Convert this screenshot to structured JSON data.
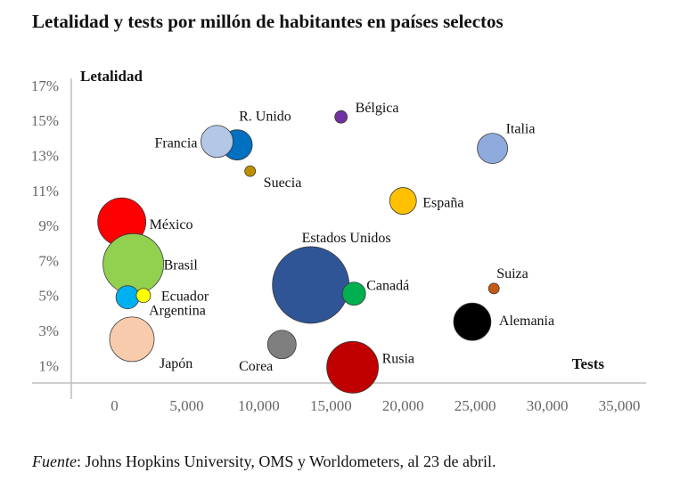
{
  "title": "Letalidad y tests por millón de habitantes en países selectos",
  "source": {
    "label": "Fuente",
    "text": ": Johns Hopkins University, OMS y Worldometers, al 23 de abril."
  },
  "chart_data": {
    "type": "scatter",
    "title": "Letalidad y tests por millón de habitantes en países selectos",
    "xlabel": "Tests",
    "ylabel": "Letalidad",
    "xlim": [
      -3000,
      35000
    ],
    "ylim": [
      0,
      17.5
    ],
    "x_ticks": [
      0,
      5000,
      10000,
      15000,
      20000,
      25000,
      30000,
      35000
    ],
    "x_tick_labels": [
      "0",
      "5,000",
      "10,000",
      "15,000",
      "20,000",
      "25,000",
      "30,000",
      "35,000"
    ],
    "y_ticks": [
      1,
      3,
      5,
      7,
      9,
      11,
      13,
      15,
      17
    ],
    "y_tick_labels": [
      "1%",
      "3%",
      "5%",
      "7%",
      "9%",
      "11%",
      "13%",
      "15%",
      "17%"
    ],
    "grid": false,
    "points": [
      {
        "name": "Bélgica",
        "x": 15700,
        "y": 15.2,
        "r": 7,
        "color": "#7030a0"
      },
      {
        "name": "R. Unido",
        "x": 8500,
        "y": 13.6,
        "r": 17,
        "color": "#0070c0"
      },
      {
        "name": "Francia",
        "x": 7100,
        "y": 13.8,
        "r": 18,
        "color": "#b4c7e7"
      },
      {
        "name": "Italia",
        "x": 26200,
        "y": 13.4,
        "r": 17,
        "color": "#8faadc"
      },
      {
        "name": "Suecia",
        "x": 9400,
        "y": 12.1,
        "r": 6,
        "color": "#bf8f00"
      },
      {
        "name": "España",
        "x": 20000,
        "y": 10.4,
        "r": 15,
        "color": "#ffc000"
      },
      {
        "name": "México",
        "x": 500,
        "y": 9.2,
        "r": 27,
        "color": "#ff0000"
      },
      {
        "name": "Brasil",
        "x": 1300,
        "y": 6.8,
        "r": 34,
        "color": "#92d050"
      },
      {
        "name": "Argentina",
        "x": 900,
        "y": 4.9,
        "r": 13,
        "color": "#00b0f0"
      },
      {
        "name": "Ecuador",
        "x": 2000,
        "y": 5.0,
        "r": 8,
        "color": "#ffff00"
      },
      {
        "name": "Estados Unidos",
        "x": 13600,
        "y": 5.6,
        "r": 43,
        "color": "#2f5597"
      },
      {
        "name": "Canadá",
        "x": 16600,
        "y": 5.1,
        "r": 13,
        "color": "#00b050"
      },
      {
        "name": "Suiza",
        "x": 26300,
        "y": 5.4,
        "r": 6,
        "color": "#c55a11"
      },
      {
        "name": "Alemania",
        "x": 24800,
        "y": 3.5,
        "r": 21,
        "color": "#000000"
      },
      {
        "name": "Japón",
        "x": 1200,
        "y": 2.5,
        "r": 25,
        "color": "#f8cbad"
      },
      {
        "name": "Corea",
        "x": 11600,
        "y": 2.2,
        "r": 16,
        "color": "#7f7f7f"
      },
      {
        "name": "Rusia",
        "x": 16500,
        "y": 0.9,
        "r": 29,
        "color": "#c00000"
      }
    ]
  }
}
